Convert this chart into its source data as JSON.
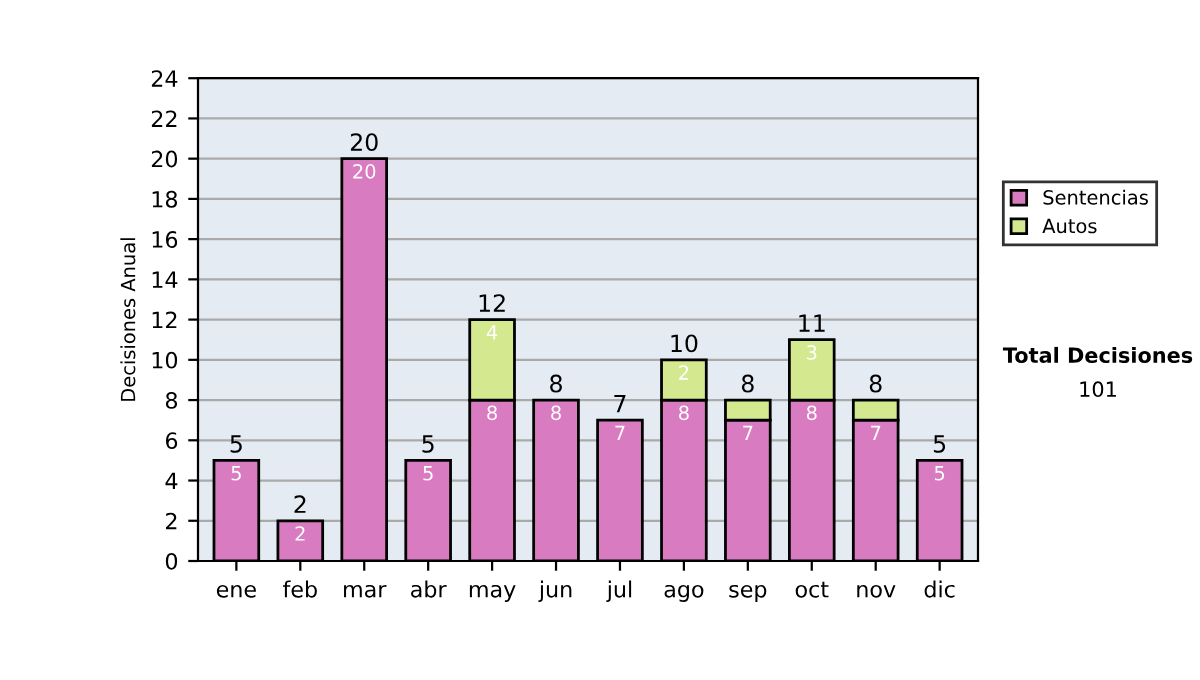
{
  "chart_data": {
    "type": "bar",
    "stacked": true,
    "ylabel": "Decisiones Anual",
    "categories": [
      "ene",
      "feb",
      "mar",
      "abr",
      "may",
      "jun",
      "jul",
      "ago",
      "sep",
      "oct",
      "nov",
      "dic"
    ],
    "series": [
      {
        "name": "Sentencias",
        "color": "#d97bc0",
        "values": [
          5,
          2,
          20,
          5,
          8,
          8,
          7,
          8,
          7,
          8,
          7,
          5
        ],
        "value_labels": [
          "5",
          "2",
          "20",
          "5",
          "8",
          "8",
          "7",
          "8",
          "7",
          "8",
          "7",
          "5"
        ]
      },
      {
        "name": "Autos",
        "color": "#d4e88f",
        "values": [
          null,
          null,
          null,
          null,
          4,
          null,
          null,
          2,
          1,
          3,
          1,
          null
        ],
        "value_labels": [
          null,
          null,
          null,
          null,
          "4",
          null,
          null,
          "2",
          null,
          "3",
          null,
          null
        ]
      }
    ],
    "totals": [
      "5",
      "2",
      "20",
      "5",
      "12",
      "8",
      "7",
      "10",
      "8",
      "11",
      "8",
      "5"
    ],
    "ylim": [
      0,
      24
    ],
    "yticks": [
      0,
      2,
      4,
      6,
      8,
      10,
      12,
      14,
      16,
      18,
      20,
      22,
      24
    ],
    "grid": "y",
    "legend": "right",
    "annotations": [
      "Total Decisiones",
      "101"
    ]
  }
}
